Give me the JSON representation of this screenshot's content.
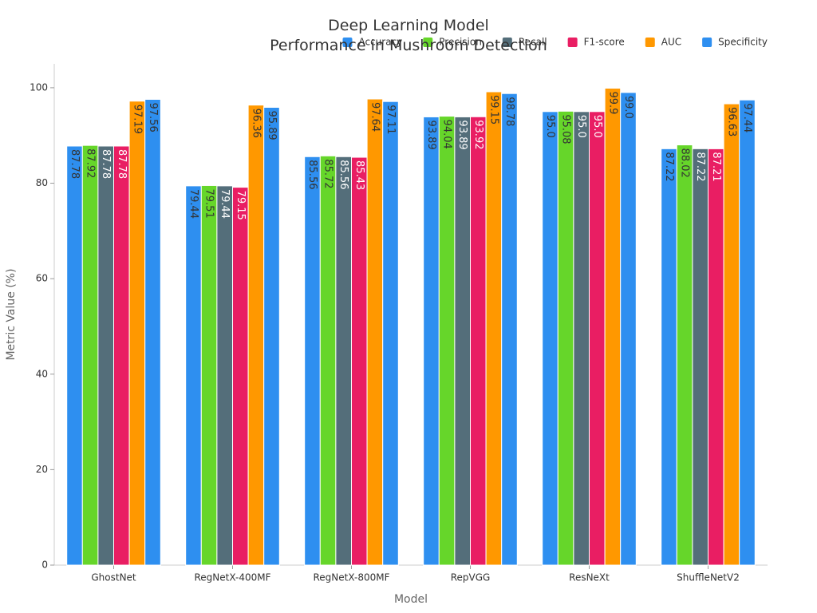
{
  "chart_data": {
    "type": "bar",
    "title": "Deep Learning Model\nPerformance in Mushroom Detection",
    "x_label": "Model",
    "y_label": "Metric Value (%)",
    "categories": [
      "GhostNet",
      "RegNetX-400MF",
      "RegNetX-800MF",
      "RepVGG",
      "ResNeXt",
      "ShuffleNetV2"
    ],
    "series": [
      {
        "name": "Accuracy",
        "color": "#2e8ff0",
        "values": [
          87.78,
          79.44,
          85.56,
          93.89,
          95.0,
          87.22
        ],
        "value_labels": [
          "87.78",
          "79.44",
          "85.56",
          "93.89",
          "95.0",
          "87.22"
        ]
      },
      {
        "name": "Precision",
        "color": "#66d62a",
        "values": [
          87.92,
          79.51,
          85.72,
          94.04,
          95.08,
          88.02
        ]
      },
      {
        "name": "Recall",
        "color": "#546e7a",
        "values": [
          87.78,
          79.44,
          85.56,
          93.89,
          95.0,
          87.22
        ],
        "value_labels": [
          "87.78",
          "79.44",
          "85.56",
          "93.89",
          "95.0",
          "87.22"
        ]
      },
      {
        "name": "F1-score",
        "color": "#e91e63",
        "values": [
          87.78,
          79.15,
          85.43,
          93.92,
          95.0,
          87.21
        ],
        "value_labels": [
          "87.78",
          "79.15",
          "85.43",
          "93.92",
          "95.0",
          "87.21"
        ]
      },
      {
        "name": "AUC",
        "color": "#ff9800",
        "values": [
          97.19,
          96.36,
          97.64,
          99.15,
          99.9,
          96.63
        ]
      },
      {
        "name": "Specificity",
        "color": "#2e8ff0",
        "values": [
          97.56,
          95.89,
          97.11,
          98.78,
          99.0,
          97.44
        ],
        "value_labels": [
          "97.56",
          "95.89",
          "97.11",
          "98.78",
          "99.0",
          "97.44"
        ]
      }
    ],
    "ylim": [
      0,
      105
    ],
    "yticks": [
      0,
      20,
      40,
      60,
      80,
      100
    ],
    "grid": false,
    "legend_position": "top-right"
  }
}
